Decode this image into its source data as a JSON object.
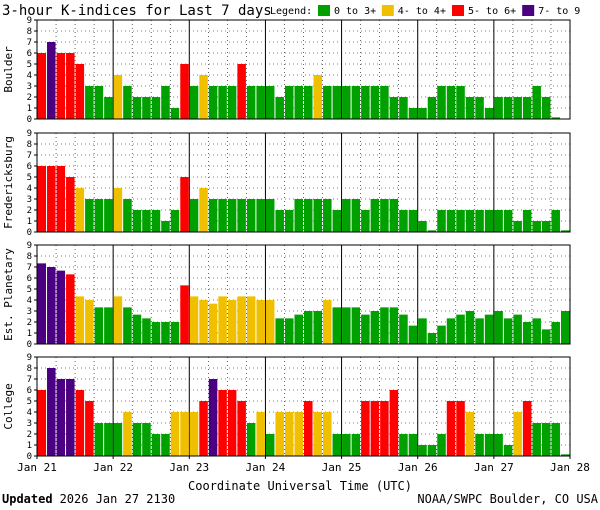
{
  "chart_data": {
    "type": "bar",
    "title": "3-hour K-indices for Last 7 days",
    "legend_title": "Legend:",
    "legend": [
      {
        "label": "0 to 3+",
        "color": "#00a000"
      },
      {
        "label": "4- to 4+",
        "color": "#f0c000"
      },
      {
        "label": "5- to 6+",
        "color": "#ff0000"
      },
      {
        "label": "7- to 9",
        "color": "#4b0082"
      }
    ],
    "ylim": [
      0,
      9
    ],
    "yticks": [
      "0",
      "1",
      "2",
      "3",
      "4",
      "5",
      "6",
      "7",
      "8",
      "9"
    ],
    "xlabel": "Coordinate Universal Time (UTC)",
    "xticks": [
      "Jan 21",
      "Jan 22",
      "Jan 23",
      "Jan 24",
      "Jan 25",
      "Jan 26",
      "Jan 27",
      "Jan 28"
    ],
    "interval_hours": 3,
    "series": [
      {
        "name": "Boulder",
        "values": [
          6,
          7,
          6,
          6,
          5,
          3,
          3,
          2,
          4,
          3,
          2,
          2,
          2,
          3,
          1,
          5,
          3,
          4,
          3,
          3,
          3,
          5,
          3,
          3,
          3,
          2,
          3,
          3,
          3,
          4,
          3,
          3,
          3,
          3,
          3,
          3,
          3,
          2,
          2,
          1,
          1,
          2,
          3,
          3,
          3,
          2,
          2,
          1,
          2,
          2,
          2,
          2,
          3,
          2,
          0.15
        ]
      },
      {
        "name": "Fredericksburg",
        "values": [
          6,
          6,
          6,
          5,
          4,
          3,
          3,
          3,
          4,
          3,
          2,
          2,
          2,
          1,
          2,
          5,
          3,
          4,
          3,
          3,
          3,
          3,
          3,
          3,
          3,
          2,
          2,
          3,
          3,
          3,
          3,
          2,
          3,
          3,
          2,
          3,
          3,
          3,
          2,
          2,
          1,
          0.15,
          2,
          2,
          2,
          2,
          2,
          2,
          2,
          2,
          1,
          2,
          1,
          1,
          2,
          0.15
        ]
      },
      {
        "name": "Est. Planetary",
        "values": [
          7.33,
          7,
          6.67,
          6.33,
          4.33,
          4,
          3.33,
          3.33,
          4.33,
          3.33,
          2.67,
          2.33,
          2,
          2,
          2,
          5.33,
          4.33,
          4,
          3.67,
          4.33,
          4,
          4.33,
          4.33,
          4,
          4,
          2.33,
          2.33,
          2.67,
          3,
          3,
          4,
          3.33,
          3.33,
          3.33,
          2.67,
          3,
          3.33,
          3.33,
          2.67,
          1.67,
          2.33,
          1,
          1.67,
          2.33,
          2.67,
          3,
          2.33,
          2.67,
          3,
          2.33,
          2.67,
          2,
          2.33,
          1.33,
          2,
          3
        ]
      },
      {
        "name": "College",
        "values": [
          6,
          8,
          7,
          7,
          6,
          5,
          3,
          3,
          3,
          4,
          3,
          3,
          2,
          2,
          4,
          4,
          4,
          5,
          7,
          6,
          6,
          5,
          3,
          4,
          2,
          4,
          4,
          4,
          5,
          4,
          4,
          2,
          2,
          2,
          5,
          5,
          5,
          6,
          2,
          2,
          1,
          1,
          2,
          5,
          5,
          4,
          2,
          2,
          2,
          1,
          4,
          5,
          3,
          3,
          3,
          0.15
        ]
      }
    ]
  },
  "footer": {
    "updated_label": "Updated",
    "updated_value": "2026 Jan 27 2130",
    "credit": "NOAA/SWPC Boulder, CO USA"
  }
}
